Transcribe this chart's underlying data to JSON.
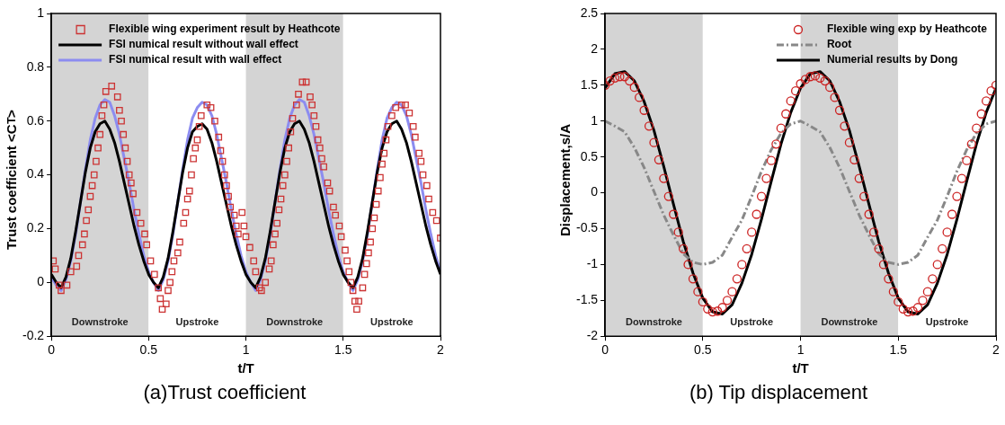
{
  "chart_data": [
    {
      "type": "line",
      "title": "(a)Trust coefficient",
      "xlabel": "t/T",
      "ylabel": "Trust coefficient <C$_{T}$>",
      "legend": "top left",
      "xlim": [
        0,
        2
      ],
      "xticks": [
        0,
        0.5,
        1,
        1.5,
        2
      ],
      "ylim": [
        -0.2,
        1
      ],
      "yticks": [
        -0.2,
        0,
        0.2,
        0.4,
        0.6,
        0.8,
        1
      ],
      "x": [
        0,
        0.025,
        0.05,
        0.075,
        0.1,
        0.125,
        0.15,
        0.175,
        0.2,
        0.225,
        0.25,
        0.275,
        0.3,
        0.325,
        0.35,
        0.375,
        0.4,
        0.425,
        0.45,
        0.475,
        0.5,
        0.525,
        0.55,
        0.575,
        0.6,
        0.625,
        0.65,
        0.675,
        0.7,
        0.725,
        0.75,
        0.775,
        0.8,
        0.825,
        0.85,
        0.875,
        0.9,
        0.925,
        0.95,
        0.975,
        1,
        1.025,
        1.05,
        1.075,
        1.1,
        1.125,
        1.15,
        1.175,
        1.2,
        1.225,
        1.25,
        1.275,
        1.3,
        1.325,
        1.35,
        1.375,
        1.4,
        1.425,
        1.45,
        1.475,
        1.5,
        1.525,
        1.55,
        1.575,
        1.6,
        1.625,
        1.65,
        1.675,
        1.7,
        1.725,
        1.75,
        1.775,
        1.8,
        1.825,
        1.85,
        1.875,
        1.9,
        1.925,
        1.95,
        1.975,
        2
      ],
      "bands": [
        {
          "axis": "x",
          "from": 0,
          "to": 0.5,
          "label": "Downstroke",
          "color": "#d4d4d4"
        },
        {
          "axis": "x",
          "from": 0.5,
          "to": 1,
          "label": "Upstroke",
          "color": "#ffffff"
        },
        {
          "axis": "x",
          "from": 1,
          "to": 1.5,
          "label": "Downstroke",
          "color": "#d4d4d4"
        },
        {
          "axis": "x",
          "from": 1.5,
          "to": 2,
          "label": "Upstroke",
          "color": "#ffffff"
        }
      ],
      "series": [
        {
          "name": "Flexible wing experiment result by Heathcote",
          "type": "scatter",
          "marker": "square",
          "color": "#cc3333",
          "x": [
            0.01,
            0.02,
            0.04,
            0.05,
            0.08,
            0.1,
            0.13,
            0.14,
            0.16,
            0.17,
            0.18,
            0.19,
            0.2,
            0.21,
            0.22,
            0.23,
            0.24,
            0.25,
            0.26,
            0.27,
            0.28,
            0.31,
            0.34,
            0.35,
            0.36,
            0.37,
            0.38,
            0.39,
            0.4,
            0.41,
            0.42,
            0.44,
            0.46,
            0.48,
            0.49,
            0.51,
            0.53,
            0.55,
            0.56,
            0.57,
            0.59,
            0.6,
            0.61,
            0.62,
            0.63,
            0.65,
            0.66,
            0.68,
            0.69,
            0.7,
            0.71,
            0.72,
            0.73,
            0.74,
            0.75,
            0.76,
            0.77,
            0.8,
            0.82,
            0.84,
            0.86,
            0.87,
            0.88,
            0.89,
            0.9,
            0.91,
            0.92,
            0.94,
            0.95,
            0.96,
            0.98,
            0.99,
            1.0,
            1.02,
            1.04,
            1.05,
            1.07,
            1.08,
            1.1,
            1.12,
            1.13,
            1.14,
            1.15,
            1.16,
            1.17,
            1.18,
            1.19,
            1.2,
            1.21,
            1.22,
            1.23,
            1.24,
            1.26,
            1.27,
            1.29,
            1.31,
            1.33,
            1.34,
            1.35,
            1.36,
            1.37,
            1.38,
            1.39,
            1.4,
            1.42,
            1.43,
            1.45,
            1.46,
            1.48,
            1.49,
            1.51,
            1.52,
            1.53,
            1.54,
            1.55,
            1.56,
            1.57,
            1.58,
            1.6,
            1.61,
            1.62,
            1.63,
            1.64,
            1.65,
            1.66,
            1.67,
            1.68,
            1.69,
            1.7,
            1.71,
            1.72,
            1.73,
            1.75,
            1.77,
            1.8,
            1.82,
            1.84,
            1.86,
            1.87,
            1.89,
            1.9,
            1.91,
            1.93,
            1.94,
            1.96,
            1.98,
            2.0
          ],
          "values": [
            0.08,
            0.05,
            -0.01,
            -0.03,
            -0.01,
            0.04,
            0.06,
            0.1,
            0.14,
            0.18,
            0.23,
            0.27,
            0.32,
            0.36,
            0.4,
            0.45,
            0.5,
            0.55,
            0.62,
            0.66,
            0.71,
            0.73,
            0.69,
            0.64,
            0.6,
            0.55,
            0.5,
            0.45,
            0.4,
            0.37,
            0.33,
            0.26,
            0.22,
            0.18,
            0.14,
            0.08,
            0.03,
            -0.02,
            -0.06,
            -0.1,
            -0.08,
            -0.03,
            0.0,
            0.04,
            0.08,
            0.11,
            0.15,
            0.22,
            0.26,
            0.31,
            0.34,
            0.4,
            0.46,
            0.5,
            0.53,
            0.58,
            0.62,
            0.66,
            0.65,
            0.6,
            0.54,
            0.49,
            0.45,
            0.4,
            0.36,
            0.32,
            0.28,
            0.25,
            0.21,
            0.18,
            0.26,
            0.21,
            0.17,
            0.13,
            0.08,
            0.04,
            -0.02,
            -0.03,
            0.0,
            0.05,
            0.08,
            0.14,
            0.18,
            0.22,
            0.27,
            0.31,
            0.36,
            0.4,
            0.45,
            0.5,
            0.56,
            0.61,
            0.66,
            0.7,
            0.745,
            0.745,
            0.69,
            0.66,
            0.62,
            0.58,
            0.53,
            0.5,
            0.46,
            0.43,
            0.37,
            0.34,
            0.28,
            0.25,
            0.21,
            0.17,
            0.12,
            0.08,
            0.04,
            0.0,
            -0.03,
            -0.07,
            -0.1,
            -0.07,
            -0.02,
            0.03,
            0.07,
            0.11,
            0.15,
            0.2,
            0.24,
            0.29,
            0.34,
            0.39,
            0.44,
            0.48,
            0.53,
            0.58,
            0.62,
            0.65,
            0.66,
            0.66,
            0.63,
            0.58,
            0.54,
            0.48,
            0.45,
            0.4,
            0.36,
            0.31,
            0.26,
            0.23,
            0.165
          ]
        },
        {
          "name": "FSI numical result without wall effect",
          "type": "line",
          "marker": "none",
          "color": "#000000",
          "values": [
            0.03,
            0.0,
            -0.02,
            0.02,
            0.09,
            0.19,
            0.3,
            0.41,
            0.5,
            0.56,
            0.59,
            0.6,
            0.57,
            0.52,
            0.45,
            0.37,
            0.29,
            0.21,
            0.14,
            0.08,
            0.03,
            0.0,
            -0.02,
            0.02,
            0.09,
            0.19,
            0.3,
            0.41,
            0.5,
            0.56,
            0.58,
            0.59,
            0.57,
            0.52,
            0.45,
            0.37,
            0.29,
            0.21,
            0.14,
            0.08,
            0.03,
            0.0,
            -0.02,
            0.02,
            0.09,
            0.19,
            0.3,
            0.41,
            0.5,
            0.56,
            0.59,
            0.6,
            0.57,
            0.52,
            0.45,
            0.37,
            0.29,
            0.21,
            0.14,
            0.08,
            0.03,
            0.0,
            -0.02,
            0.02,
            0.09,
            0.19,
            0.3,
            0.41,
            0.5,
            0.56,
            0.59,
            0.6,
            0.57,
            0.52,
            0.45,
            0.37,
            0.29,
            0.21,
            0.14,
            0.08,
            0.03
          ]
        },
        {
          "name": "FSI numical result with wall effect",
          "type": "line",
          "marker": "none",
          "color": "#8c8cf0",
          "values": [
            0.02,
            -0.01,
            -0.03,
            0.01,
            0.08,
            0.18,
            0.3,
            0.42,
            0.53,
            0.61,
            0.66,
            0.68,
            0.67,
            0.62,
            0.55,
            0.46,
            0.37,
            0.27,
            0.18,
            0.1,
            0.04,
            0.0,
            -0.03,
            0.01,
            0.08,
            0.18,
            0.3,
            0.42,
            0.53,
            0.61,
            0.65,
            0.67,
            0.66,
            0.62,
            0.55,
            0.46,
            0.37,
            0.27,
            0.18,
            0.1,
            0.04,
            0.0,
            -0.03,
            0.01,
            0.08,
            0.18,
            0.3,
            0.42,
            0.53,
            0.61,
            0.66,
            0.68,
            0.67,
            0.62,
            0.55,
            0.46,
            0.37,
            0.27,
            0.18,
            0.1,
            0.04,
            0.0,
            -0.03,
            0.01,
            0.08,
            0.18,
            0.3,
            0.42,
            0.53,
            0.61,
            0.65,
            0.67,
            0.66,
            0.62,
            0.55,
            0.46,
            0.37,
            0.27,
            0.18,
            0.1,
            0.04
          ]
        }
      ]
    },
    {
      "type": "line",
      "title": "(b) Tip displacement",
      "xlabel": "t/T",
      "ylabel": "Displacement,s/A",
      "legend": "top right",
      "xlim": [
        0,
        2
      ],
      "xticks": [
        0,
        0.5,
        1,
        1.5,
        2
      ],
      "ylim": [
        -2,
        2.5
      ],
      "yticks": [
        -2,
        -1.5,
        -1,
        -0.5,
        0,
        0.5,
        1,
        1.5,
        2,
        2.5
      ],
      "x": [
        0,
        0.025,
        0.05,
        0.075,
        0.1,
        0.125,
        0.15,
        0.175,
        0.2,
        0.225,
        0.25,
        0.275,
        0.3,
        0.325,
        0.35,
        0.375,
        0.4,
        0.425,
        0.45,
        0.475,
        0.5,
        0.525,
        0.55,
        0.575,
        0.6,
        0.625,
        0.65,
        0.675,
        0.7,
        0.725,
        0.75,
        0.775,
        0.8,
        0.825,
        0.85,
        0.875,
        0.9,
        0.925,
        0.95,
        0.975,
        1,
        1.025,
        1.05,
        1.075,
        1.1,
        1.125,
        1.15,
        1.175,
        1.2,
        1.225,
        1.25,
        1.275,
        1.3,
        1.325,
        1.35,
        1.375,
        1.4,
        1.425,
        1.45,
        1.475,
        1.5,
        1.525,
        1.55,
        1.575,
        1.6,
        1.625,
        1.65,
        1.675,
        1.7,
        1.725,
        1.75,
        1.775,
        1.8,
        1.825,
        1.85,
        1.875,
        1.9,
        1.925,
        1.95,
        1.975,
        2
      ],
      "bands": [
        {
          "axis": "x",
          "from": 0,
          "to": 0.5,
          "label": "Downstroke",
          "color": "#d4d4d4"
        },
        {
          "axis": "x",
          "from": 0.5,
          "to": 1,
          "label": "Upstroke",
          "color": "#ffffff"
        },
        {
          "axis": "x",
          "from": 1,
          "to": 1.5,
          "label": "Downstroke",
          "color": "#d4d4d4"
        },
        {
          "axis": "x",
          "from": 1.5,
          "to": 2,
          "label": "Upstroke",
          "color": "#ffffff"
        }
      ],
      "series": [
        {
          "name": "Flexible wing exp by Heathcote",
          "type": "scatter",
          "marker": "circle",
          "color": "#cc2222",
          "values": [
            1.5,
            1.56,
            1.6,
            1.62,
            1.62,
            1.56,
            1.47,
            1.33,
            1.15,
            0.93,
            0.7,
            0.46,
            0.2,
            -0.05,
            -0.3,
            -0.55,
            -0.78,
            -1.0,
            -1.2,
            -1.38,
            -1.52,
            -1.62,
            -1.66,
            -1.65,
            -1.6,
            -1.5,
            -1.38,
            -1.2,
            -1.0,
            -0.78,
            -0.55,
            -0.3,
            -0.05,
            0.2,
            0.45,
            0.68,
            0.9,
            1.1,
            1.28,
            1.42,
            1.52,
            1.58,
            1.62,
            1.63,
            1.6,
            1.56,
            1.47,
            1.33,
            1.15,
            0.93,
            0.7,
            0.46,
            0.2,
            -0.05,
            -0.3,
            -0.55,
            -0.78,
            -1.0,
            -1.2,
            -1.38,
            -1.52,
            -1.62,
            -1.66,
            -1.65,
            -1.6,
            -1.5,
            -1.38,
            -1.2,
            -1.0,
            -0.78,
            -0.55,
            -0.3,
            -0.05,
            0.2,
            0.45,
            0.68,
            0.9,
            1.1,
            1.28,
            1.42,
            1.5
          ]
        },
        {
          "name": "Root",
          "type": "line",
          "marker": "none",
          "line_style": "dashed",
          "color": "#888888",
          "x": [
            0,
            0.05,
            0.1,
            0.15,
            0.2,
            0.25,
            0.3,
            0.35,
            0.4,
            0.45,
            0.5,
            0.55,
            0.6,
            0.65,
            0.7,
            0.75,
            0.8,
            0.85,
            0.9,
            0.95,
            1,
            1.05,
            1.1,
            1.15,
            1.2,
            1.25,
            1.3,
            1.35,
            1.4,
            1.45,
            1.5,
            1.55,
            1.6,
            1.65,
            1.7,
            1.75,
            1.8,
            1.85,
            1.9,
            1.95,
            2
          ],
          "values": [
            1.0,
            0.93,
            0.85,
            0.63,
            0.35,
            0.02,
            -0.31,
            -0.59,
            -0.85,
            -0.97,
            -1.0,
            -0.97,
            -0.87,
            -0.62,
            -0.38,
            -0.05,
            0.3,
            0.6,
            0.83,
            0.96,
            1.0,
            0.93,
            0.85,
            0.63,
            0.35,
            0.02,
            -0.31,
            -0.59,
            -0.85,
            -0.97,
            -1.0,
            -0.97,
            -0.87,
            -0.62,
            -0.38,
            -0.05,
            0.3,
            0.6,
            0.83,
            0.96,
            1.0
          ]
        },
        {
          "name": "Numerial results by Dong",
          "type": "line",
          "marker": "none",
          "color": "#000000",
          "x": [
            0,
            0.05,
            0.1,
            0.15,
            0.2,
            0.25,
            0.3,
            0.35,
            0.4,
            0.45,
            0.5,
            0.55,
            0.6,
            0.65,
            0.7,
            0.75,
            0.8,
            0.85,
            0.9,
            0.95,
            1,
            1.05,
            1.1,
            1.15,
            1.2,
            1.25,
            1.3,
            1.35,
            1.4,
            1.45,
            1.5,
            1.55,
            1.6,
            1.65,
            1.7,
            1.75,
            1.8,
            1.85,
            1.9,
            1.95,
            2
          ],
          "values": [
            1.46,
            1.66,
            1.69,
            1.56,
            1.27,
            0.87,
            0.37,
            -0.16,
            -0.68,
            -1.12,
            -1.47,
            -1.66,
            -1.69,
            -1.56,
            -1.26,
            -0.86,
            -0.37,
            0.16,
            0.68,
            1.12,
            1.46,
            1.66,
            1.69,
            1.56,
            1.27,
            0.87,
            0.37,
            -0.16,
            -0.68,
            -1.12,
            -1.47,
            -1.66,
            -1.69,
            -1.56,
            -1.26,
            -0.86,
            -0.37,
            0.16,
            0.68,
            1.12,
            1.46
          ]
        }
      ]
    }
  ]
}
